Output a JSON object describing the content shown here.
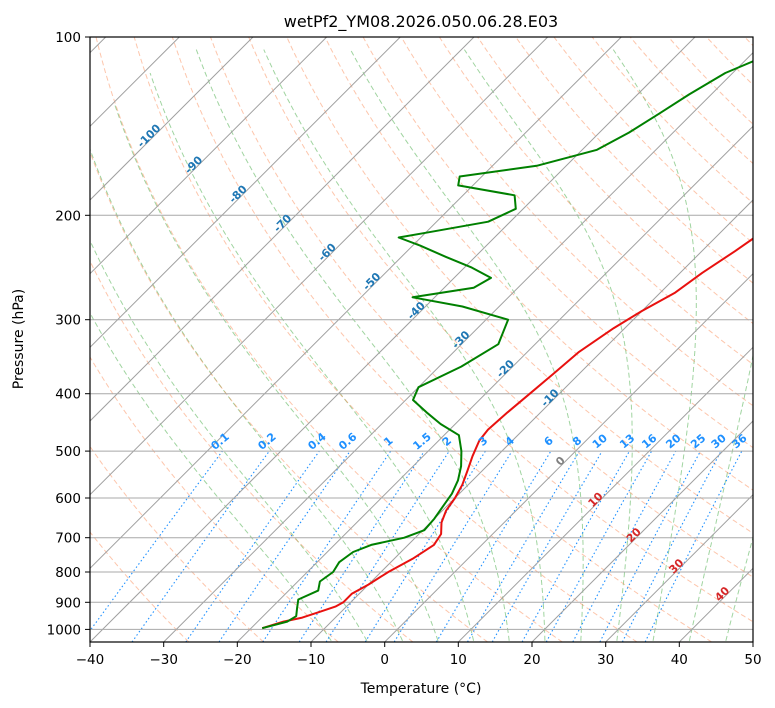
{
  "chart_data": {
    "type": "line",
    "title": "wetPf2_YM08.2026.050.06.28.E03",
    "xlabel": "Temperature (°C)",
    "ylabel": "Pressure (hPa)",
    "xlim": [
      -40,
      50
    ],
    "ylim": [
      1050,
      100
    ],
    "y_scale": "log",
    "x_ticks": [
      -40,
      -30,
      -20,
      -10,
      0,
      10,
      20,
      30,
      40,
      50
    ],
    "x_tick_labels": [
      "−40",
      "−30",
      "−20",
      "−10",
      "0",
      "10",
      "20",
      "30",
      "40",
      "50"
    ],
    "y_ticks": [
      1000,
      900,
      800,
      700,
      600,
      500,
      400,
      300,
      200,
      100
    ],
    "y_tick_labels": [
      "1000",
      "900",
      "800",
      "700",
      "600",
      "500",
      "400",
      "300",
      "200",
      "100"
    ],
    "grid": true,
    "series": [
      {
        "color": "#e8110f",
        "pressure": [
          995,
          970,
          955,
          935,
          915,
          900,
          870,
          840,
          800,
          760,
          720,
          690,
          660,
          630,
          600,
          570,
          540,
          510,
          480,
          460,
          430,
          400,
          370,
          340,
          310,
          290,
          270,
          250,
          230,
          215,
          200,
          180,
          165,
          155,
          140,
          128,
          115,
          108,
          100
        ],
        "temperature": [
          -18.5,
          -16.5,
          -14.5,
          -13,
          -11.5,
          -11,
          -11,
          -10,
          -9,
          -7.5,
          -6.5,
          -7,
          -8.5,
          -9.5,
          -10,
          -10.8,
          -12,
          -13.3,
          -14.5,
          -14.8,
          -14.5,
          -14,
          -13.5,
          -13,
          -11.5,
          -10,
          -8,
          -7,
          -5.5,
          -4.5,
          -3.5,
          -1.5,
          0,
          0.5,
          3,
          5,
          6.5,
          8,
          10
        ]
      },
      {
        "color": "#008000",
        "pressure": [
          995,
          970,
          950,
          920,
          890,
          860,
          830,
          800,
          770,
          740,
          720,
          700,
          680,
          650,
          620,
          590,
          560,
          530,
          500,
          470,
          450,
          430,
          410,
          390,
          360,
          330,
          300,
          285,
          275,
          265,
          255,
          245,
          235,
          225,
          218,
          214,
          205,
          195,
          185,
          178,
          172,
          165,
          155,
          145,
          135,
          125,
          115,
          108,
          100
        ],
        "temperature": [
          -18.5,
          -16,
          -15.5,
          -16.5,
          -17.5,
          -16,
          -17,
          -16.5,
          -17,
          -16.5,
          -15,
          -11.5,
          -9.8,
          -10,
          -10.5,
          -11,
          -12,
          -13.5,
          -15.5,
          -18,
          -22,
          -25.5,
          -29,
          -30,
          -27,
          -25,
          -27,
          -35,
          -43,
          -36,
          -35,
          -39,
          -44,
          -49,
          -53,
          -50,
          -43,
          -41,
          -43,
          -52,
          -53,
          -44,
          -38,
          -36,
          -34.5,
          -33,
          -31,
          -28,
          -25
        ]
      }
    ],
    "isotherm_labels": [
      "10",
      "20",
      "30",
      "40",
      "0",
      "-10",
      "-20",
      "-30",
      "-40",
      "-50",
      "-60",
      "-70",
      "-80",
      "-90",
      "-100"
    ],
    "mixing_ratio_labels": [
      "0.1",
      "0.2",
      "0.4",
      "0.6",
      "1",
      "1.5",
      "2",
      "3",
      "4",
      "6",
      "8",
      "10",
      "13",
      "16",
      "20",
      "25",
      "30",
      "36"
    ],
    "colors": {
      "isotherm_positive": "#d62728",
      "isotherm_zero": "#808080",
      "isotherm_negative": "#1f77b4",
      "dry_adiabat": "#fc8d59",
      "moist_adiabat": "#2ca02c",
      "mixing_ratio": "#1e90ff"
    }
  }
}
